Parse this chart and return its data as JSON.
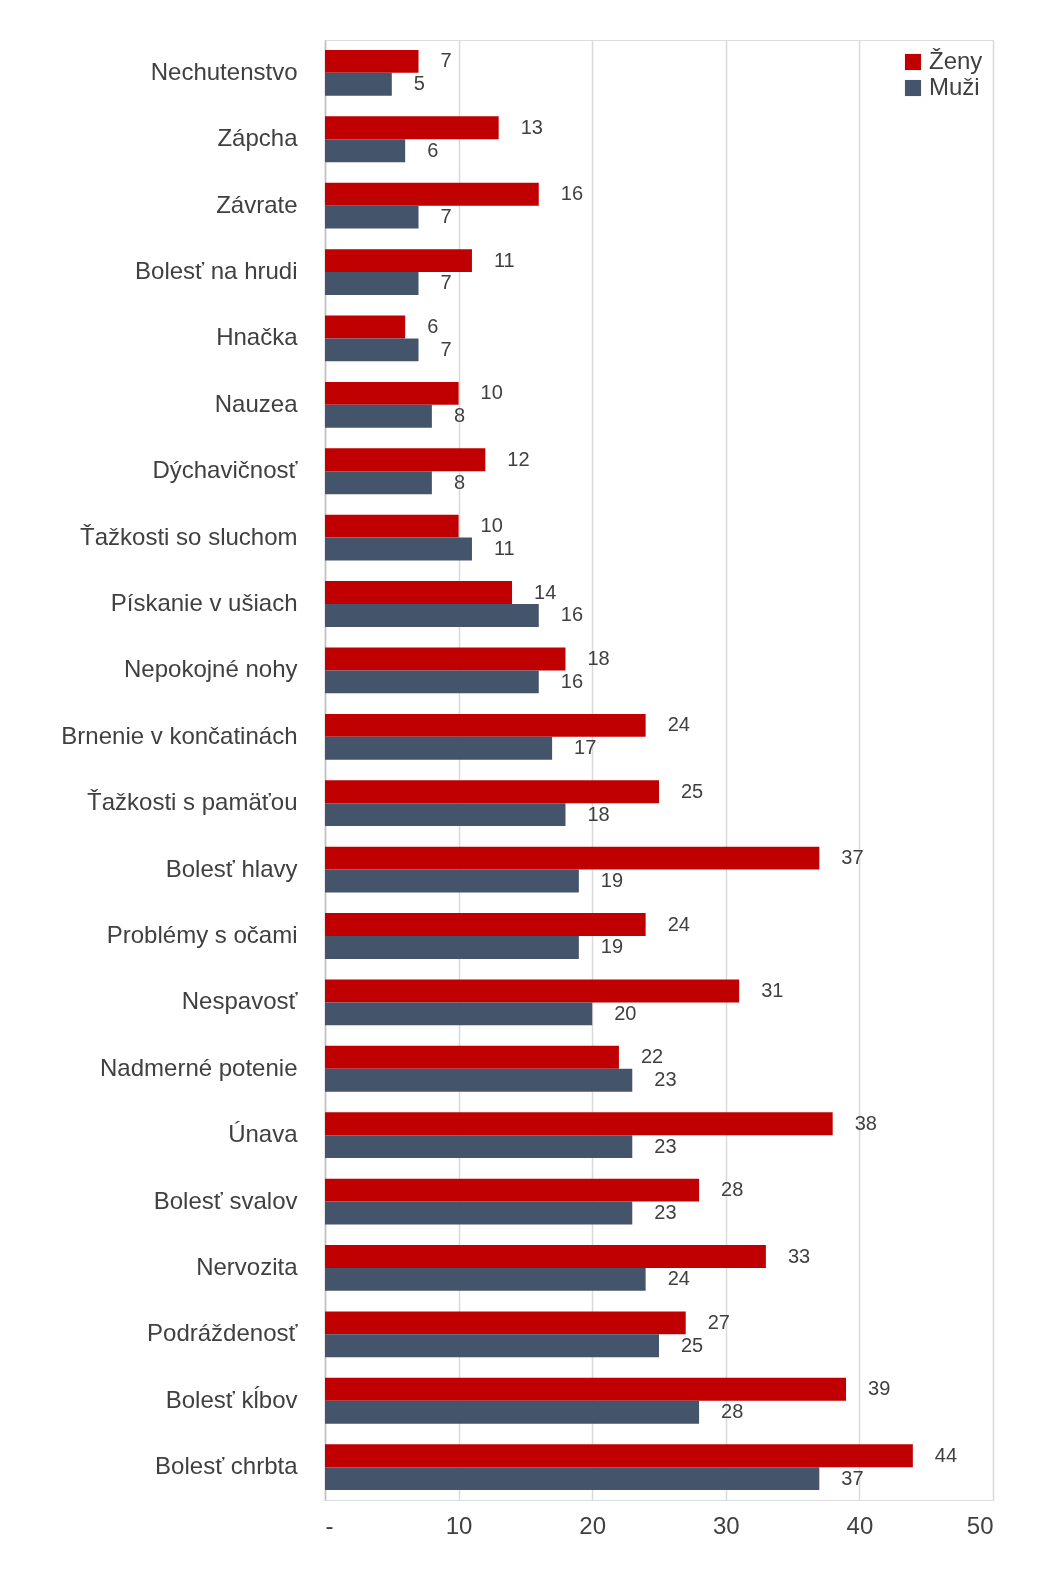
{
  "chart_data": {
    "type": "bar",
    "orientation": "horizontal",
    "categories": [
      "Nechutenstvo",
      "Zápcha",
      "Závrate",
      "Bolesť na hrudi",
      "Hnačka",
      "Nauzea",
      "Dýchavičnosť",
      "Ťažkosti so sluchom",
      "Pískanie v ušiach",
      "Nepokojné nohy",
      "Brnenie v končatinách",
      "Ťažkosti s pamäťou",
      "Bolesť hlavy",
      "Problémy s očami",
      "Nespavosť",
      "Nadmerné potenie",
      "Únava",
      "Bolesť svalov",
      "Nervozita",
      "Podráždenosť",
      "Bolesť kĺbov",
      "Bolesť chrbta"
    ],
    "series": [
      {
        "name": "Ženy",
        "color": "#c00000",
        "values": [
          7,
          13,
          16,
          11,
          6,
          10,
          12,
          10,
          14,
          18,
          24,
          25,
          37,
          24,
          31,
          22,
          38,
          28,
          33,
          27,
          39,
          44
        ]
      },
      {
        "name": "Muži",
        "color": "#44546a",
        "values": [
          5,
          6,
          7,
          7,
          7,
          8,
          8,
          11,
          16,
          16,
          17,
          18,
          19,
          19,
          20,
          23,
          23,
          23,
          24,
          25,
          28,
          37
        ]
      }
    ],
    "xlim": [
      0,
      50
    ],
    "xticks": [
      {
        "value": 0,
        "label": "-"
      },
      10,
      20,
      30,
      40,
      50
    ],
    "grid": "x",
    "legend": "top right",
    "data_labels": true
  }
}
